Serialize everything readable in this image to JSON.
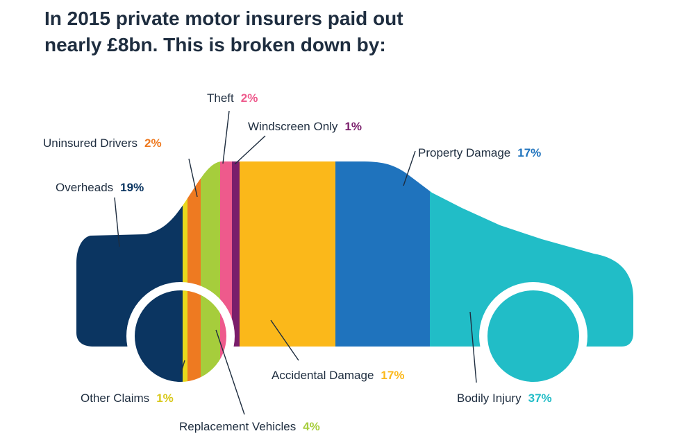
{
  "chart_data": {
    "type": "bar",
    "subtype": "stacked-100-percent (car silhouette)",
    "title_lines": [
      "In 2015 private motor insurers paid out",
      "nearly £8bn. This is broken down by:"
    ],
    "unit": "%",
    "segments": [
      {
        "id": "overheads",
        "name": "Overheads",
        "value": 19,
        "label": "19%",
        "color": "#0b3561"
      },
      {
        "id": "other-claims",
        "name": "Other Claims",
        "value": 1,
        "label": "1%",
        "color": "#e8d81c"
      },
      {
        "id": "uninsured-drivers",
        "name": "Uninsured Drivers",
        "value": 2,
        "label": "2%",
        "color": "#ee7a21"
      },
      {
        "id": "replacement-vehicles",
        "name": "Replacement Vehicles",
        "value": 4,
        "label": "4%",
        "color": "#a6cd3c"
      },
      {
        "id": "theft",
        "name": "Theft",
        "value": 2,
        "label": "2%",
        "color": "#ee5a8c"
      },
      {
        "id": "windscreen-only",
        "name": "Windscreen Only",
        "value": 1,
        "label": "1%",
        "color": "#7a1e6b"
      },
      {
        "id": "accidental-damage",
        "name": "Accidental Damage",
        "value": 17,
        "label": "17%",
        "color": "#fbb81a"
      },
      {
        "id": "property-damage",
        "name": "Property Damage",
        "value": 17,
        "label": "17%",
        "color": "#1f73bd"
      },
      {
        "id": "bodily-injury",
        "name": "Bodily Injury",
        "value": 37,
        "label": "37%",
        "color": "#21bdc7"
      }
    ],
    "title_color": "#1e2d3f",
    "label_color": "#1e2d3f"
  }
}
